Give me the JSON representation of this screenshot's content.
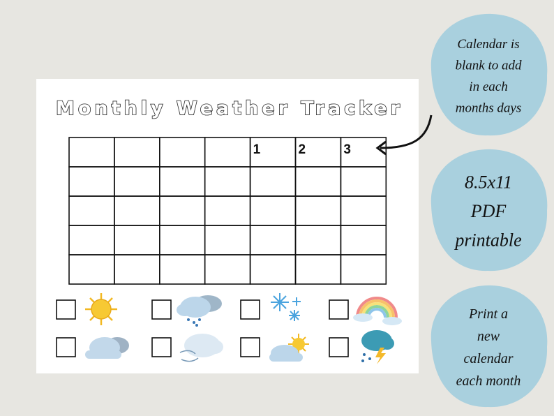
{
  "title": "Monthly Weather Tracker",
  "calendar": {
    "day_labels": [
      1,
      2,
      3
    ]
  },
  "badges": [
    {
      "lines": [
        "Calendar is",
        "blank to add",
        "in each",
        "months days"
      ]
    },
    {
      "lines": [
        "8.5x11",
        "PDF",
        "printable"
      ]
    },
    {
      "lines": [
        "Print a",
        "new",
        "calendar",
        "each month"
      ]
    }
  ]
}
